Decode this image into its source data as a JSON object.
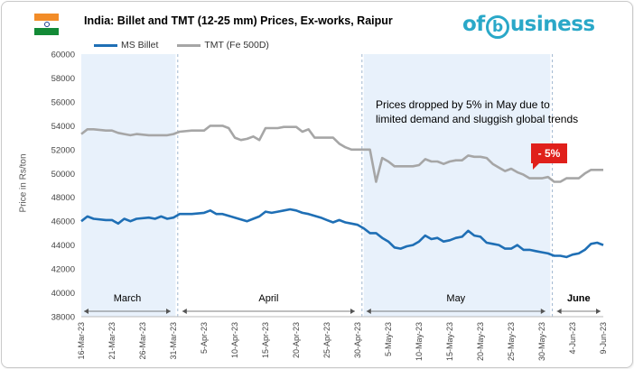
{
  "header": {
    "title": "India: Billet and TMT (12-25 mm) Prices, Ex-works, Raipur",
    "logo_text_before": "of",
    "logo_text_b": "b",
    "logo_text_after": "usiness"
  },
  "annotation": {
    "text": "Prices dropped by 5% in May due to limited demand and sluggish global trends",
    "badge": "- 5%"
  },
  "colors": {
    "billet": "#1f6fb5",
    "tmt": "#a6a6a6",
    "month_band": "#e8f1fb",
    "badge": "#e0201b"
  },
  "chart_data": {
    "type": "line",
    "title": "India: Billet and TMT (12-25 mm) Prices, Ex-works, Raipur",
    "xlabel": "",
    "ylabel": "Price in Rs/ton",
    "ylim": [
      38000,
      60000
    ],
    "yticks": [
      38000,
      40000,
      42000,
      44000,
      46000,
      48000,
      50000,
      52000,
      54000,
      56000,
      58000,
      60000
    ],
    "x_start": "16-Mar-23",
    "x_end": "9-Jun-23",
    "xtick_labels": [
      "16-Mar-23",
      "21-Mar-23",
      "26-Mar-23",
      "31-Mar-23",
      "5-Apr-23",
      "10-Apr-23",
      "15-Apr-23",
      "20-Apr-23",
      "25-Apr-23",
      "30-Apr-23",
      "5-May-23",
      "10-May-23",
      "15-May-23",
      "20-May-23",
      "25-May-23",
      "30-May-23",
      "4-Jun-23",
      "9-Jun-23"
    ],
    "months": [
      {
        "label": "March",
        "start": "16-Mar-23",
        "end": "31-Mar-23",
        "shaded": true
      },
      {
        "label": "April",
        "start": "1-Apr-23",
        "end": "30-Apr-23",
        "shaded": false
      },
      {
        "label": "May",
        "start": "1-May-23",
        "end": "31-May-23",
        "shaded": true
      },
      {
        "label": "June",
        "start": "1-Jun-23",
        "end": "9-Jun-23",
        "shaded": false
      }
    ],
    "legend_position": "top-left",
    "grid": false,
    "series": [
      {
        "name": "MS Billet",
        "color": "#1f6fb5",
        "points": [
          [
            "16-Mar-23",
            46000
          ],
          [
            "17-Mar-23",
            46400
          ],
          [
            "18-Mar-23",
            46200
          ],
          [
            "20-Mar-23",
            46100
          ],
          [
            "21-Mar-23",
            46100
          ],
          [
            "22-Mar-23",
            45800
          ],
          [
            "23-Mar-23",
            46200
          ],
          [
            "24-Mar-23",
            46000
          ],
          [
            "25-Mar-23",
            46200
          ],
          [
            "27-Mar-23",
            46300
          ],
          [
            "28-Mar-23",
            46200
          ],
          [
            "29-Mar-23",
            46400
          ],
          [
            "30-Mar-23",
            46200
          ],
          [
            "31-Mar-23",
            46300
          ],
          [
            "1-Apr-23",
            46600
          ],
          [
            "3-Apr-23",
            46600
          ],
          [
            "5-Apr-23",
            46700
          ],
          [
            "6-Apr-23",
            46900
          ],
          [
            "7-Apr-23",
            46600
          ],
          [
            "8-Apr-23",
            46600
          ],
          [
            "10-Apr-23",
            46300
          ],
          [
            "12-Apr-23",
            46000
          ],
          [
            "13-Apr-23",
            46200
          ],
          [
            "14-Apr-23",
            46400
          ],
          [
            "15-Apr-23",
            46800
          ],
          [
            "16-Apr-23",
            46700
          ],
          [
            "17-Apr-23",
            46800
          ],
          [
            "18-Apr-23",
            46900
          ],
          [
            "19-Apr-23",
            47000
          ],
          [
            "20-Apr-23",
            46900
          ],
          [
            "21-Apr-23",
            46700
          ],
          [
            "22-Apr-23",
            46600
          ],
          [
            "24-Apr-23",
            46300
          ],
          [
            "25-Apr-23",
            46100
          ],
          [
            "26-Apr-23",
            45900
          ],
          [
            "27-Apr-23",
            46100
          ],
          [
            "28-Apr-23",
            45900
          ],
          [
            "29-Apr-23",
            45800
          ],
          [
            "30-Apr-23",
            45700
          ],
          [
            "1-May-23",
            45400
          ],
          [
            "2-May-23",
            45000
          ],
          [
            "3-May-23",
            45000
          ],
          [
            "4-May-23",
            44600
          ],
          [
            "5-May-23",
            44300
          ],
          [
            "6-May-23",
            43800
          ],
          [
            "7-May-23",
            43700
          ],
          [
            "8-May-23",
            43900
          ],
          [
            "9-May-23",
            44000
          ],
          [
            "10-May-23",
            44300
          ],
          [
            "11-May-23",
            44800
          ],
          [
            "12-May-23",
            44500
          ],
          [
            "13-May-23",
            44600
          ],
          [
            "14-May-23",
            44300
          ],
          [
            "15-May-23",
            44400
          ],
          [
            "16-May-23",
            44600
          ],
          [
            "17-May-23",
            44700
          ],
          [
            "18-May-23",
            45200
          ],
          [
            "19-May-23",
            44800
          ],
          [
            "20-May-23",
            44700
          ],
          [
            "21-May-23",
            44200
          ],
          [
            "22-May-23",
            44100
          ],
          [
            "23-May-23",
            44000
          ],
          [
            "24-May-23",
            43700
          ],
          [
            "25-May-23",
            43700
          ],
          [
            "26-May-23",
            44000
          ],
          [
            "27-May-23",
            43600
          ],
          [
            "28-May-23",
            43600
          ],
          [
            "29-May-23",
            43500
          ],
          [
            "30-May-23",
            43400
          ],
          [
            "31-May-23",
            43300
          ],
          [
            "1-Jun-23",
            43100
          ],
          [
            "2-Jun-23",
            43100
          ],
          [
            "3-Jun-23",
            43000
          ],
          [
            "4-Jun-23",
            43200
          ],
          [
            "5-Jun-23",
            43300
          ],
          [
            "6-Jun-23",
            43600
          ],
          [
            "7-Jun-23",
            44100
          ],
          [
            "8-Jun-23",
            44200
          ],
          [
            "9-Jun-23",
            44000
          ]
        ]
      },
      {
        "name": "TMT (Fe 500D)",
        "color": "#a6a6a6",
        "points": [
          [
            "16-Mar-23",
            53300
          ],
          [
            "17-Mar-23",
            53700
          ],
          [
            "18-Mar-23",
            53700
          ],
          [
            "20-Mar-23",
            53600
          ],
          [
            "21-Mar-23",
            53600
          ],
          [
            "22-Mar-23",
            53400
          ],
          [
            "23-Mar-23",
            53300
          ],
          [
            "24-Mar-23",
            53200
          ],
          [
            "25-Mar-23",
            53300
          ],
          [
            "27-Mar-23",
            53200
          ],
          [
            "28-Mar-23",
            53200
          ],
          [
            "29-Mar-23",
            53200
          ],
          [
            "30-Mar-23",
            53200
          ],
          [
            "31-Mar-23",
            53300
          ],
          [
            "1-Apr-23",
            53500
          ],
          [
            "3-Apr-23",
            53600
          ],
          [
            "5-Apr-23",
            53600
          ],
          [
            "6-Apr-23",
            54000
          ],
          [
            "7-Apr-23",
            54000
          ],
          [
            "8-Apr-23",
            54000
          ],
          [
            "9-Apr-23",
            53800
          ],
          [
            "10-Apr-23",
            53000
          ],
          [
            "11-Apr-23",
            52800
          ],
          [
            "12-Apr-23",
            52900
          ],
          [
            "13-Apr-23",
            53100
          ],
          [
            "14-Apr-23",
            52800
          ],
          [
            "15-Apr-23",
            53800
          ],
          [
            "16-Apr-23",
            53800
          ],
          [
            "17-Apr-23",
            53800
          ],
          [
            "18-Apr-23",
            53900
          ],
          [
            "19-Apr-23",
            53900
          ],
          [
            "20-Apr-23",
            53900
          ],
          [
            "21-Apr-23",
            53500
          ],
          [
            "22-Apr-23",
            53700
          ],
          [
            "23-Apr-23",
            53000
          ],
          [
            "24-Apr-23",
            53000
          ],
          [
            "25-Apr-23",
            53000
          ],
          [
            "26-Apr-23",
            53000
          ],
          [
            "27-Apr-23",
            52500
          ],
          [
            "28-Apr-23",
            52200
          ],
          [
            "29-Apr-23",
            52000
          ],
          [
            "30-Apr-23",
            52000
          ],
          [
            "1-May-23",
            52000
          ],
          [
            "2-May-23",
            52000
          ],
          [
            "3-May-23",
            49300
          ],
          [
            "4-May-23",
            51300
          ],
          [
            "5-May-23",
            51000
          ],
          [
            "6-May-23",
            50600
          ],
          [
            "7-May-23",
            50600
          ],
          [
            "8-May-23",
            50600
          ],
          [
            "9-May-23",
            50600
          ],
          [
            "10-May-23",
            50700
          ],
          [
            "11-May-23",
            51200
          ],
          [
            "12-May-23",
            51000
          ],
          [
            "13-May-23",
            51000
          ],
          [
            "14-May-23",
            50800
          ],
          [
            "15-May-23",
            51000
          ],
          [
            "16-May-23",
            51100
          ],
          [
            "17-May-23",
            51100
          ],
          [
            "18-May-23",
            51500
          ],
          [
            "19-May-23",
            51400
          ],
          [
            "20-May-23",
            51400
          ],
          [
            "21-May-23",
            51300
          ],
          [
            "22-May-23",
            50800
          ],
          [
            "23-May-23",
            50500
          ],
          [
            "24-May-23",
            50200
          ],
          [
            "25-May-23",
            50400
          ],
          [
            "26-May-23",
            50100
          ],
          [
            "27-May-23",
            49900
          ],
          [
            "28-May-23",
            49600
          ],
          [
            "29-May-23",
            49600
          ],
          [
            "30-May-23",
            49600
          ],
          [
            "31-May-23",
            49700
          ],
          [
            "1-Jun-23",
            49300
          ],
          [
            "2-Jun-23",
            49300
          ],
          [
            "3-Jun-23",
            49600
          ],
          [
            "4-Jun-23",
            49600
          ],
          [
            "5-Jun-23",
            49600
          ],
          [
            "6-Jun-23",
            50000
          ],
          [
            "7-Jun-23",
            50300
          ],
          [
            "8-Jun-23",
            50300
          ],
          [
            "9-Jun-23",
            50300
          ]
        ]
      }
    ]
  }
}
